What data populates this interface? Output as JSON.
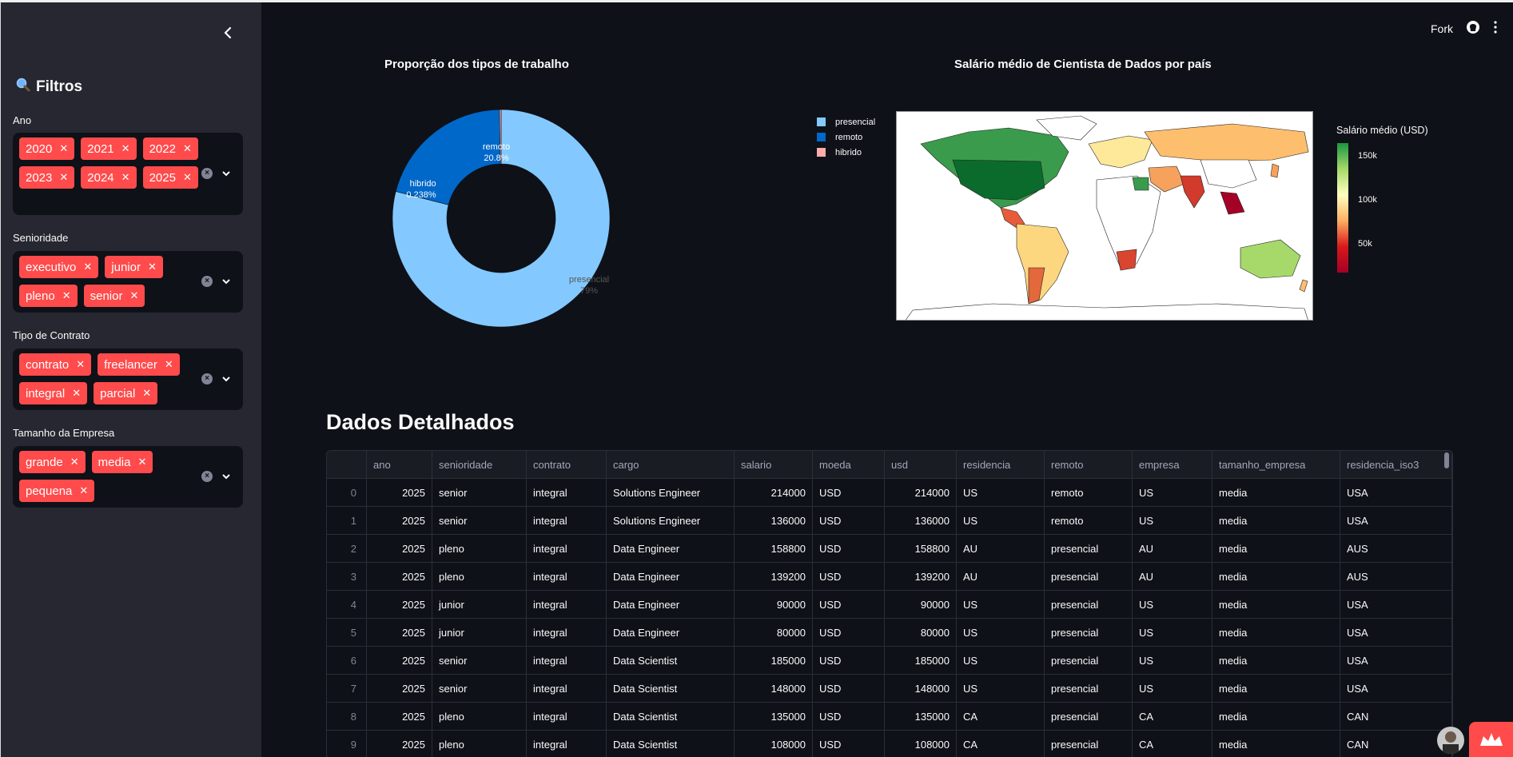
{
  "sidebar": {
    "title": "Filtros",
    "filters": [
      {
        "label": "Ano",
        "tags": [
          "2020",
          "2021",
          "2022",
          "2023",
          "2024",
          "2025"
        ]
      },
      {
        "label": "Senioridade",
        "tags": [
          "executivo",
          "junior",
          "pleno",
          "senior"
        ]
      },
      {
        "label": "Tipo de Contrato",
        "tags": [
          "contrato",
          "freelancer",
          "integral",
          "parcial"
        ]
      },
      {
        "label": "Tamanho da Empresa",
        "tags": [
          "grande",
          "media",
          "pequena"
        ]
      }
    ]
  },
  "topbar": {
    "fork": "Fork"
  },
  "pie": {
    "title": "Proporção dos tipos de trabalho",
    "chart_data": {
      "type": "pie",
      "title": "Proporção dos tipos de trabalho",
      "categories": [
        "presencial",
        "remoto",
        "hibrido"
      ],
      "values": [
        79,
        20.8,
        0.238
      ],
      "labels": [
        "presencial\n79%",
        "remoto\n20.8%",
        "hibrido\n0.238%"
      ],
      "colors": [
        "#83c9ff",
        "#0068c9",
        "#ffabab"
      ],
      "legend": [
        "presencial",
        "remoto",
        "hibrido"
      ]
    },
    "slice_labels": {
      "presencial": "presencial",
      "presencial_pct": "79%",
      "remoto": "remoto",
      "remoto_pct": "20.8%",
      "hibrido": "hibrido",
      "hibrido_pct": "0.238%"
    }
  },
  "map": {
    "title": "Salário médio de Cientista de Dados por país",
    "colorbar_title": "Salário médio (USD)",
    "colorbar_ticks": [
      "150k",
      "100k",
      "50k"
    ]
  },
  "table": {
    "title": "Dados Detalhados",
    "columns": [
      "",
      "ano",
      "senioridade",
      "contrato",
      "cargo",
      "salario",
      "moeda",
      "usd",
      "residencia",
      "remoto",
      "empresa",
      "tamanho_empresa",
      "residencia_iso3"
    ],
    "rows": [
      [
        "0",
        "2025",
        "senior",
        "integral",
        "Solutions Engineer",
        "214000",
        "USD",
        "214000",
        "US",
        "remoto",
        "US",
        "media",
        "USA"
      ],
      [
        "1",
        "2025",
        "senior",
        "integral",
        "Solutions Engineer",
        "136000",
        "USD",
        "136000",
        "US",
        "remoto",
        "US",
        "media",
        "USA"
      ],
      [
        "2",
        "2025",
        "pleno",
        "integral",
        "Data Engineer",
        "158800",
        "USD",
        "158800",
        "AU",
        "presencial",
        "AU",
        "media",
        "AUS"
      ],
      [
        "3",
        "2025",
        "pleno",
        "integral",
        "Data Engineer",
        "139200",
        "USD",
        "139200",
        "AU",
        "presencial",
        "AU",
        "media",
        "AUS"
      ],
      [
        "4",
        "2025",
        "junior",
        "integral",
        "Data Engineer",
        "90000",
        "USD",
        "90000",
        "US",
        "presencial",
        "US",
        "media",
        "USA"
      ],
      [
        "5",
        "2025",
        "junior",
        "integral",
        "Data Engineer",
        "80000",
        "USD",
        "80000",
        "US",
        "presencial",
        "US",
        "media",
        "USA"
      ],
      [
        "6",
        "2025",
        "senior",
        "integral",
        "Data Scientist",
        "185000",
        "USD",
        "185000",
        "US",
        "presencial",
        "US",
        "media",
        "USA"
      ],
      [
        "7",
        "2025",
        "senior",
        "integral",
        "Data Scientist",
        "148000",
        "USD",
        "148000",
        "US",
        "presencial",
        "US",
        "media",
        "USA"
      ],
      [
        "8",
        "2025",
        "pleno",
        "integral",
        "Data Scientist",
        "135000",
        "USD",
        "135000",
        "CA",
        "presencial",
        "CA",
        "media",
        "CAN"
      ],
      [
        "9",
        "2025",
        "pleno",
        "integral",
        "Data Scientist",
        "108000",
        "USD",
        "108000",
        "CA",
        "presencial",
        "CA",
        "media",
        "CAN"
      ]
    ]
  }
}
